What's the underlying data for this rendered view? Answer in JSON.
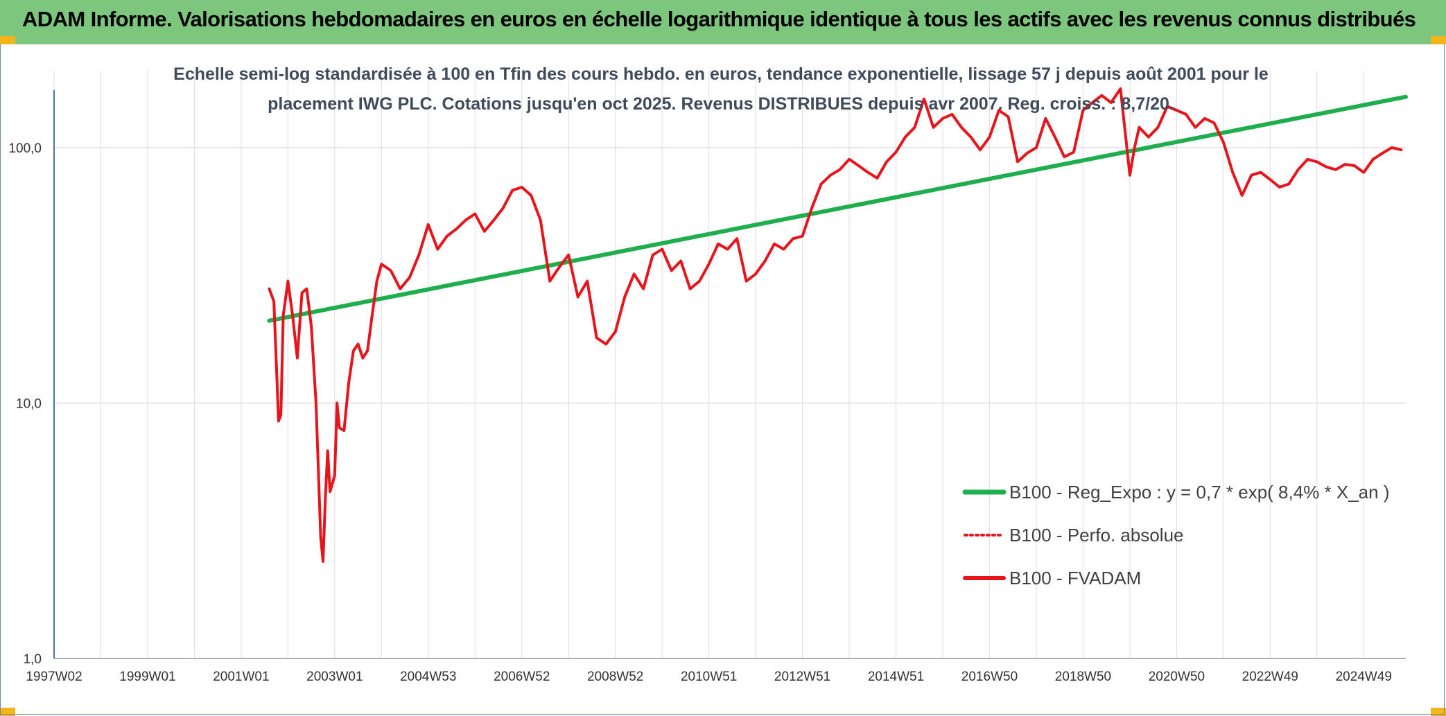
{
  "header": {
    "title": "ADAM Informe. Valorisations hebdomadaires en euros en échelle logarithmique identique à tous les actifs avec les revenus connus distribués"
  },
  "colors": {
    "header_bg": "#7dc67d",
    "trend": "#1fae4e",
    "fvadam": "#e8141b",
    "perf": "#e8141b",
    "corner": "#f2b61b"
  },
  "chart_data": {
    "type": "line",
    "title_lines": [
      "Echelle semi-log standardisée à 100 en Tfin des cours hebdo. en euros, tendance exponentielle, lissage 57 j depuis août 2001 pour le",
      "placement IWG PLC. Cotations jusqu'en oct 2025. Revenus DISTRIBUES depuis avr 2007. Reg. croiss. : 8,7/20."
    ],
    "y_scale": "log",
    "ylim": [
      1,
      200
    ],
    "y_ticks": [
      {
        "value": 1,
        "label": "1,0"
      },
      {
        "value": 10,
        "label": "10,0"
      },
      {
        "value": 100,
        "label": "100,0"
      }
    ],
    "xlim": [
      1997.0,
      2025.9
    ],
    "x_ticks": [
      {
        "value": 1997.0,
        "label": "1997W02"
      },
      {
        "value": 1999.0,
        "label": "1999W01"
      },
      {
        "value": 2001.0,
        "label": "2001W01"
      },
      {
        "value": 2003.0,
        "label": "2003W01"
      },
      {
        "value": 2005.0,
        "label": "2004W53"
      },
      {
        "value": 2007.0,
        "label": "2006W52"
      },
      {
        "value": 2009.0,
        "label": "2008W52"
      },
      {
        "value": 2011.0,
        "label": "2010W51"
      },
      {
        "value": 2013.0,
        "label": "2012W51"
      },
      {
        "value": 2015.0,
        "label": "2014W51"
      },
      {
        "value": 2017.0,
        "label": "2016W50"
      },
      {
        "value": 2019.0,
        "label": "2018W50"
      },
      {
        "value": 2021.0,
        "label": "2020W50"
      },
      {
        "value": 2023.0,
        "label": "2022W49"
      },
      {
        "value": 2025.0,
        "label": "2024W49"
      }
    ],
    "legend_placement": "bottom-right",
    "grid": {
      "vertical": true,
      "horizontal": true
    },
    "series": [
      {
        "name": "B100 - Reg_Expo : y = 0,7 * exp( 8,4% *  X_an )",
        "style": "solid-thick",
        "color": "#1fae4e",
        "x": [
          2001.6,
          2025.9
        ],
        "y": [
          21,
          158
        ]
      },
      {
        "name": "B100 - Perfo. absolue",
        "style": "dotted",
        "color": "#e8141b",
        "x": [],
        "y": []
      },
      {
        "name": "B100 - FVADAM",
        "style": "solid",
        "color": "#e8141b",
        "x": [
          2001.6,
          2001.7,
          2001.8,
          2001.85,
          2001.9,
          2002.0,
          2002.1,
          2002.2,
          2002.3,
          2002.4,
          2002.5,
          2002.6,
          2002.7,
          2002.75,
          2002.8,
          2002.85,
          2002.9,
          2003.0,
          2003.05,
          2003.1,
          2003.2,
          2003.3,
          2003.4,
          2003.5,
          2003.6,
          2003.7,
          2003.8,
          2003.9,
          2004.0,
          2004.2,
          2004.4,
          2004.6,
          2004.8,
          2005.0,
          2005.2,
          2005.4,
          2005.6,
          2005.8,
          2006.0,
          2006.2,
          2006.4,
          2006.6,
          2006.8,
          2007.0,
          2007.2,
          2007.4,
          2007.6,
          2007.8,
          2008.0,
          2008.2,
          2008.4,
          2008.6,
          2008.8,
          2009.0,
          2009.2,
          2009.4,
          2009.6,
          2009.8,
          2010.0,
          2010.2,
          2010.4,
          2010.6,
          2010.8,
          2011.0,
          2011.2,
          2011.4,
          2011.6,
          2011.8,
          2012.0,
          2012.2,
          2012.4,
          2012.6,
          2012.8,
          2013.0,
          2013.2,
          2013.4,
          2013.6,
          2013.8,
          2014.0,
          2014.2,
          2014.4,
          2014.6,
          2014.8,
          2015.0,
          2015.2,
          2015.4,
          2015.6,
          2015.8,
          2016.0,
          2016.2,
          2016.4,
          2016.6,
          2016.8,
          2017.0,
          2017.2,
          2017.4,
          2017.6,
          2017.8,
          2018.0,
          2018.2,
          2018.4,
          2018.6,
          2018.8,
          2019.0,
          2019.2,
          2019.4,
          2019.6,
          2019.8,
          2020.0,
          2020.1,
          2020.2,
          2020.4,
          2020.6,
          2020.8,
          2021.0,
          2021.2,
          2021.4,
          2021.6,
          2021.8,
          2022.0,
          2022.2,
          2022.4,
          2022.6,
          2022.8,
          2023.0,
          2023.2,
          2023.4,
          2023.6,
          2023.8,
          2024.0,
          2024.2,
          2024.4,
          2024.6,
          2024.8,
          2025.0,
          2025.2,
          2025.4,
          2025.6,
          2025.8
        ],
        "y": [
          28,
          25,
          8.5,
          9,
          22,
          30,
          22,
          15,
          27,
          28,
          20,
          10,
          3.0,
          2.4,
          4.2,
          6.5,
          4.5,
          5.2,
          10,
          8,
          7.8,
          12,
          16,
          17,
          15,
          16,
          22,
          30,
          35,
          33,
          28,
          31,
          38,
          50,
          40,
          45,
          48,
          52,
          55,
          47,
          52,
          58,
          68,
          70,
          65,
          52,
          30,
          34,
          38,
          26,
          30,
          18,
          17,
          19,
          26,
          32,
          28,
          38,
          40,
          33,
          36,
          28,
          30,
          35,
          42,
          40,
          44,
          30,
          32,
          36,
          42,
          40,
          44,
          45,
          58,
          72,
          78,
          82,
          90,
          85,
          80,
          76,
          88,
          96,
          110,
          120,
          155,
          120,
          130,
          135,
          120,
          110,
          98,
          110,
          140,
          132,
          88,
          95,
          100,
          130,
          110,
          92,
          96,
          140,
          150,
          160,
          150,
          170,
          78,
          100,
          120,
          110,
          120,
          145,
          140,
          135,
          120,
          130,
          125,
          105,
          80,
          65,
          78,
          80,
          75,
          70,
          72,
          82,
          90,
          88,
          84,
          82,
          86,
          85,
          80,
          90,
          95,
          100,
          98
        ]
      }
    ]
  }
}
